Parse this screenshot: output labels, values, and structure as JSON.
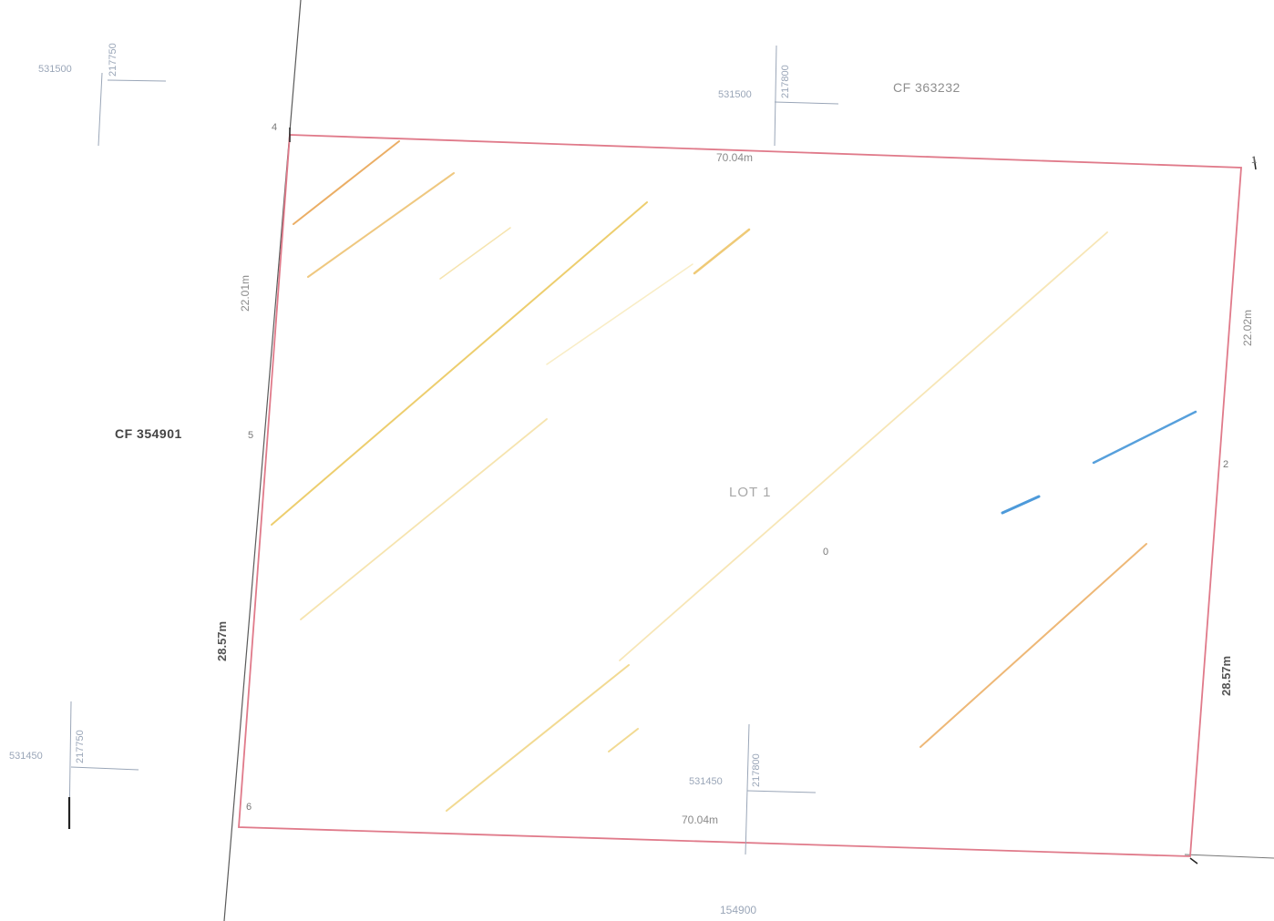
{
  "parcels": {
    "north": "CF 363232",
    "west": "CF 354901"
  },
  "lot": {
    "label": "LOT 1",
    "marker": "0"
  },
  "dimensions": {
    "north": "70.04m",
    "south": "70.04m",
    "west_upper": "22.01m",
    "west_lower": "28.57m",
    "east_upper": "22.02m",
    "east_lower": "28.57m"
  },
  "corners": {
    "nw": "4",
    "ne": "1",
    "e": "2",
    "sw": "6",
    "w_mid": "5"
  },
  "grid_ticks": {
    "top_left_e": "531500",
    "top_left_n": "217750",
    "top_center_e": "531500",
    "top_center_n": "217800",
    "bottom_left_e": "531450",
    "bottom_left_n": "217750",
    "bottom_center_e": "531450",
    "bottom_center_n": "217800",
    "bottom_axis": "154900"
  },
  "colors": {
    "boundary": "#e07a8a",
    "hatch": "#e9c24a",
    "hatch_orange": "#e8a04a",
    "water": "#3a8fd6",
    "grid": "#9aa6b8"
  }
}
